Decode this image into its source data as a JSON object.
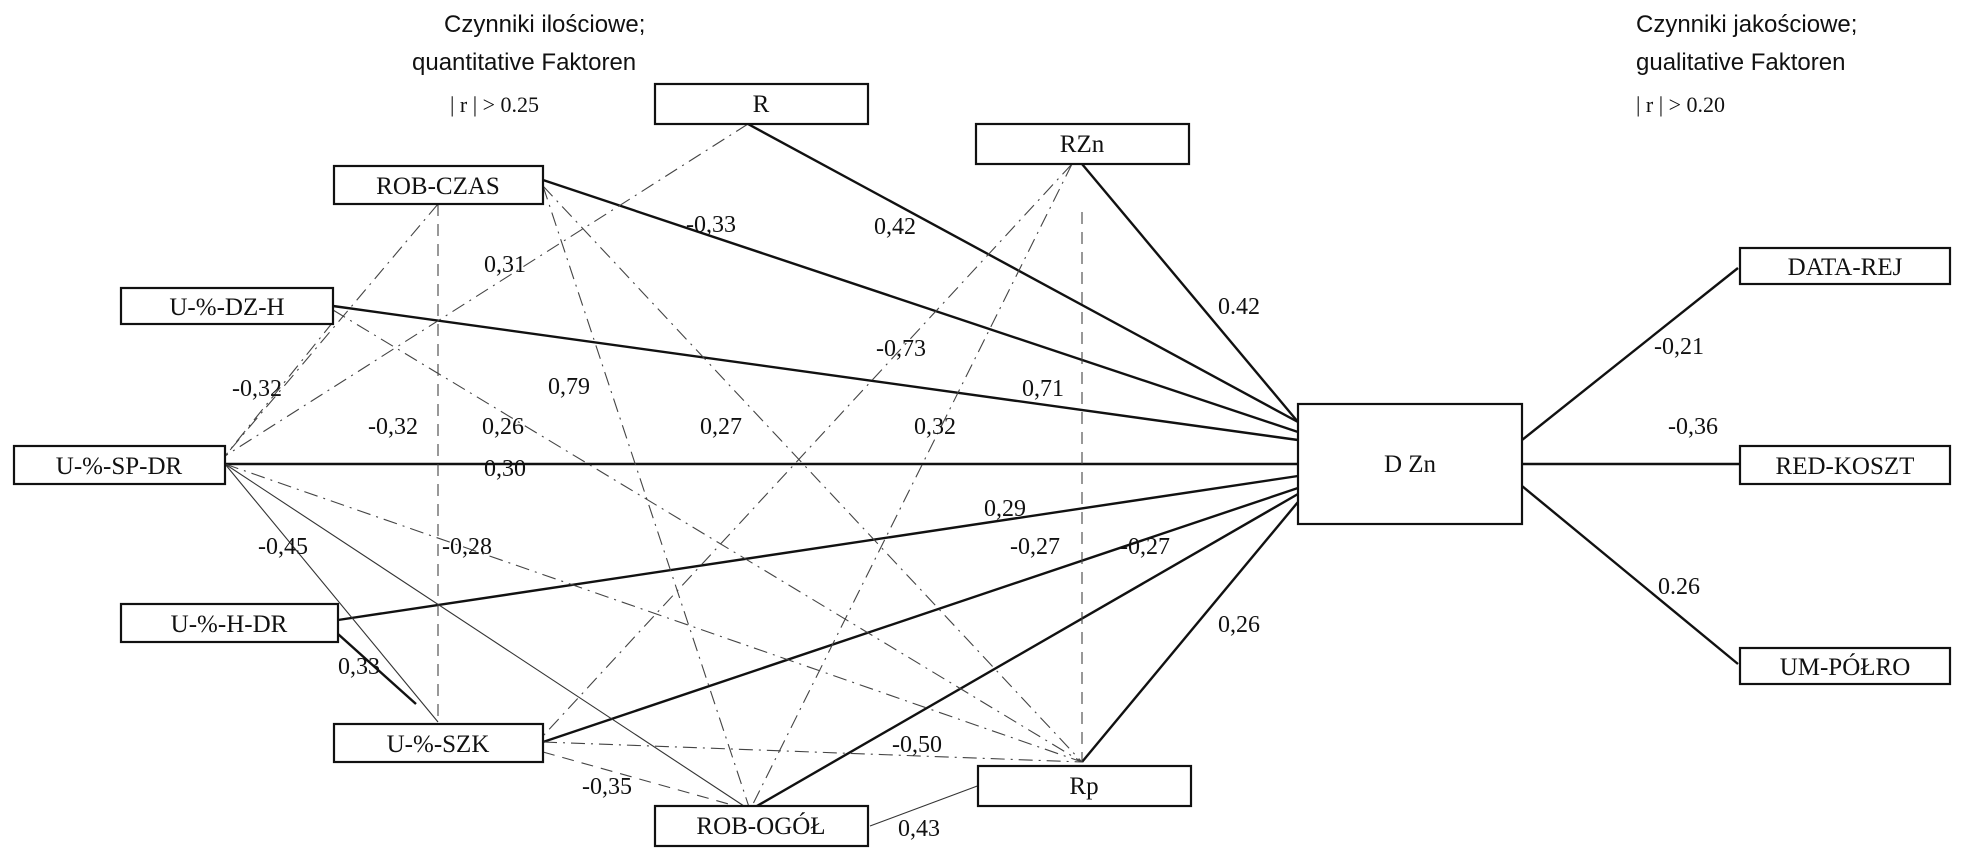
{
  "headers": {
    "left": {
      "line1": "Czynniki ilościowe;",
      "line2": "quantitative Faktoren",
      "line3": "| r | > 0.25"
    },
    "right": {
      "line1": "Czynniki jakościowe;",
      "line2": "gualitative Faktoren",
      "line3": "| r | > 0.20"
    }
  },
  "nodes": {
    "R": "R",
    "RZn": "RZn",
    "ROB_CZAS": "ROB-CZAS",
    "U_DZ_H": "U-%-DZ-H",
    "U_SP_DR": "U-%-SP-DR",
    "U_H_DR": "U-%-H-DR",
    "U_SZK": "U-%-SZK",
    "ROB_OGOL": "ROB-OGÓŁ",
    "Rp": "Rp",
    "DZn": "D Zn",
    "DATA_REJ": "DATA-REJ",
    "RED_KOSZT": "RED-KOSZT",
    "UM_POLRO": "UM-PÓŁRO"
  },
  "edge_labels": {
    "R_DZn": "0,42",
    "RZn_DZn": "0.42",
    "ROBCZAS_DZn": "-0,33",
    "UDZH_DZn": "0,71",
    "USPDR_DZn": "0,30",
    "UHDR_DZn": "0,29",
    "USZK_DZn": "-0,27",
    "ROBOGOL_DZn": "-0,27",
    "Rp_DZn": "0,26",
    "DZn_DATAREJ": "-0,21",
    "DZn_REDKOSZT": "-0,36",
    "DZn_UMPOLRO": "0.26",
    "R_USPDR": "0,31",
    "RZn_ROBOGOL": "-0,73",
    "RZn_USZK": "0,32",
    "ROBCZAS_ROBOGOL": "0,79",
    "ROBCZAS_Rp": "0,27",
    "ROBCZAS_USZK": "-0,32",
    "UDZH_USPDR": "-0,32",
    "UDZH_Rp": "0,26",
    "USPDR_USZK": "-0,45",
    "USPDR_Rp": "-0,28",
    "UHDR_USZK": "0,33",
    "USZK_Rp": "-0,50",
    "USZK_ROBOGOL": "-0,35",
    "ROBOGOL_Rp": "0,43"
  }
}
